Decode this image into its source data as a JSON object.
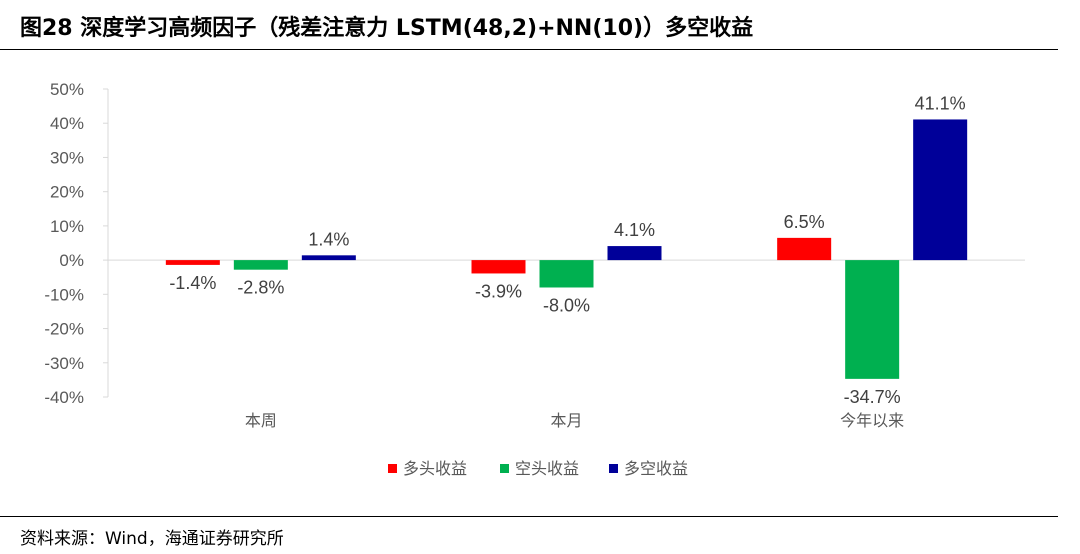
{
  "header": {
    "title": "图28 深度学习高频因子（残差注意力 LSTM(48,2)+NN(10)）多空收益"
  },
  "footer": {
    "source": "资料来源：Wind，海通证券研究所"
  },
  "chart_data": {
    "type": "bar",
    "categories": [
      "本周",
      "本月",
      "今年以来"
    ],
    "series": [
      {
        "name": "多头收益",
        "color": "#FF0000",
        "values": [
          -1.4,
          -3.9,
          6.5
        ],
        "labels": [
          "-1.4%",
          "-3.9%",
          "6.5%"
        ]
      },
      {
        "name": "空头收益",
        "color": "#00B050",
        "values": [
          -2.8,
          -8.0,
          -34.7
        ],
        "labels": [
          "-2.8%",
          "-8.0%",
          "-34.7%"
        ]
      },
      {
        "name": "多空收益",
        "color": "#000099",
        "values": [
          1.4,
          4.1,
          41.1
        ],
        "labels": [
          "1.4%",
          "4.1%",
          "41.1%"
        ]
      }
    ],
    "ylim": [
      -40,
      50
    ],
    "yticks": [
      50,
      40,
      30,
      20,
      10,
      0,
      -10,
      -20,
      -30,
      -40
    ],
    "ytick_labels": [
      "50%",
      "40%",
      "30%",
      "20%",
      "10%",
      "0%",
      "-10%",
      "-20%",
      "-30%",
      "-40%"
    ],
    "legend_position": "bottom",
    "grid": false
  }
}
